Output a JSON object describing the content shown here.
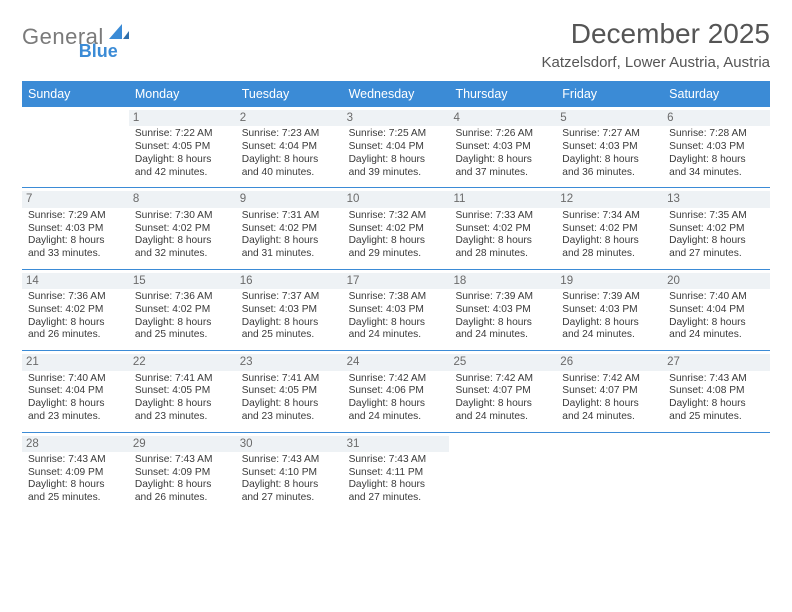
{
  "brand": {
    "word1": "General",
    "word2": "Blue"
  },
  "title": "December 2025",
  "location": "Katzelsdorf, Lower Austria, Austria",
  "colors": {
    "header_bg": "#3b8bd6",
    "header_text": "#ffffff",
    "daynum_bg": "#eef2f5",
    "daynum_text": "#6a6a6a",
    "rule": "#3b8bd6",
    "page_bg": "#ffffff",
    "body_text": "#3a3a3a",
    "title_text": "#555555"
  },
  "weekdays": [
    "Sunday",
    "Monday",
    "Tuesday",
    "Wednesday",
    "Thursday",
    "Friday",
    "Saturday"
  ],
  "weeks": [
    [
      {
        "day": "",
        "empty": true
      },
      {
        "day": "1",
        "sunrise": "Sunrise: 7:22 AM",
        "sunset": "Sunset: 4:05 PM",
        "daylight": "Daylight: 8 hours and 42 minutes."
      },
      {
        "day": "2",
        "sunrise": "Sunrise: 7:23 AM",
        "sunset": "Sunset: 4:04 PM",
        "daylight": "Daylight: 8 hours and 40 minutes."
      },
      {
        "day": "3",
        "sunrise": "Sunrise: 7:25 AM",
        "sunset": "Sunset: 4:04 PM",
        "daylight": "Daylight: 8 hours and 39 minutes."
      },
      {
        "day": "4",
        "sunrise": "Sunrise: 7:26 AM",
        "sunset": "Sunset: 4:03 PM",
        "daylight": "Daylight: 8 hours and 37 minutes."
      },
      {
        "day": "5",
        "sunrise": "Sunrise: 7:27 AM",
        "sunset": "Sunset: 4:03 PM",
        "daylight": "Daylight: 8 hours and 36 minutes."
      },
      {
        "day": "6",
        "sunrise": "Sunrise: 7:28 AM",
        "sunset": "Sunset: 4:03 PM",
        "daylight": "Daylight: 8 hours and 34 minutes."
      }
    ],
    [
      {
        "day": "7",
        "sunrise": "Sunrise: 7:29 AM",
        "sunset": "Sunset: 4:03 PM",
        "daylight": "Daylight: 8 hours and 33 minutes."
      },
      {
        "day": "8",
        "sunrise": "Sunrise: 7:30 AM",
        "sunset": "Sunset: 4:02 PM",
        "daylight": "Daylight: 8 hours and 32 minutes."
      },
      {
        "day": "9",
        "sunrise": "Sunrise: 7:31 AM",
        "sunset": "Sunset: 4:02 PM",
        "daylight": "Daylight: 8 hours and 31 minutes."
      },
      {
        "day": "10",
        "sunrise": "Sunrise: 7:32 AM",
        "sunset": "Sunset: 4:02 PM",
        "daylight": "Daylight: 8 hours and 29 minutes."
      },
      {
        "day": "11",
        "sunrise": "Sunrise: 7:33 AM",
        "sunset": "Sunset: 4:02 PM",
        "daylight": "Daylight: 8 hours and 28 minutes."
      },
      {
        "day": "12",
        "sunrise": "Sunrise: 7:34 AM",
        "sunset": "Sunset: 4:02 PM",
        "daylight": "Daylight: 8 hours and 28 minutes."
      },
      {
        "day": "13",
        "sunrise": "Sunrise: 7:35 AM",
        "sunset": "Sunset: 4:02 PM",
        "daylight": "Daylight: 8 hours and 27 minutes."
      }
    ],
    [
      {
        "day": "14",
        "sunrise": "Sunrise: 7:36 AM",
        "sunset": "Sunset: 4:02 PM",
        "daylight": "Daylight: 8 hours and 26 minutes."
      },
      {
        "day": "15",
        "sunrise": "Sunrise: 7:36 AM",
        "sunset": "Sunset: 4:02 PM",
        "daylight": "Daylight: 8 hours and 25 minutes."
      },
      {
        "day": "16",
        "sunrise": "Sunrise: 7:37 AM",
        "sunset": "Sunset: 4:03 PM",
        "daylight": "Daylight: 8 hours and 25 minutes."
      },
      {
        "day": "17",
        "sunrise": "Sunrise: 7:38 AM",
        "sunset": "Sunset: 4:03 PM",
        "daylight": "Daylight: 8 hours and 24 minutes."
      },
      {
        "day": "18",
        "sunrise": "Sunrise: 7:39 AM",
        "sunset": "Sunset: 4:03 PM",
        "daylight": "Daylight: 8 hours and 24 minutes."
      },
      {
        "day": "19",
        "sunrise": "Sunrise: 7:39 AM",
        "sunset": "Sunset: 4:03 PM",
        "daylight": "Daylight: 8 hours and 24 minutes."
      },
      {
        "day": "20",
        "sunrise": "Sunrise: 7:40 AM",
        "sunset": "Sunset: 4:04 PM",
        "daylight": "Daylight: 8 hours and 24 minutes."
      }
    ],
    [
      {
        "day": "21",
        "sunrise": "Sunrise: 7:40 AM",
        "sunset": "Sunset: 4:04 PM",
        "daylight": "Daylight: 8 hours and 23 minutes."
      },
      {
        "day": "22",
        "sunrise": "Sunrise: 7:41 AM",
        "sunset": "Sunset: 4:05 PM",
        "daylight": "Daylight: 8 hours and 23 minutes."
      },
      {
        "day": "23",
        "sunrise": "Sunrise: 7:41 AM",
        "sunset": "Sunset: 4:05 PM",
        "daylight": "Daylight: 8 hours and 23 minutes."
      },
      {
        "day": "24",
        "sunrise": "Sunrise: 7:42 AM",
        "sunset": "Sunset: 4:06 PM",
        "daylight": "Daylight: 8 hours and 24 minutes."
      },
      {
        "day": "25",
        "sunrise": "Sunrise: 7:42 AM",
        "sunset": "Sunset: 4:07 PM",
        "daylight": "Daylight: 8 hours and 24 minutes."
      },
      {
        "day": "26",
        "sunrise": "Sunrise: 7:42 AM",
        "sunset": "Sunset: 4:07 PM",
        "daylight": "Daylight: 8 hours and 24 minutes."
      },
      {
        "day": "27",
        "sunrise": "Sunrise: 7:43 AM",
        "sunset": "Sunset: 4:08 PM",
        "daylight": "Daylight: 8 hours and 25 minutes."
      }
    ],
    [
      {
        "day": "28",
        "sunrise": "Sunrise: 7:43 AM",
        "sunset": "Sunset: 4:09 PM",
        "daylight": "Daylight: 8 hours and 25 minutes."
      },
      {
        "day": "29",
        "sunrise": "Sunrise: 7:43 AM",
        "sunset": "Sunset: 4:09 PM",
        "daylight": "Daylight: 8 hours and 26 minutes."
      },
      {
        "day": "30",
        "sunrise": "Sunrise: 7:43 AM",
        "sunset": "Sunset: 4:10 PM",
        "daylight": "Daylight: 8 hours and 27 minutes."
      },
      {
        "day": "31",
        "sunrise": "Sunrise: 7:43 AM",
        "sunset": "Sunset: 4:11 PM",
        "daylight": "Daylight: 8 hours and 27 minutes."
      },
      {
        "day": "",
        "empty": true
      },
      {
        "day": "",
        "empty": true
      },
      {
        "day": "",
        "empty": true
      }
    ]
  ]
}
